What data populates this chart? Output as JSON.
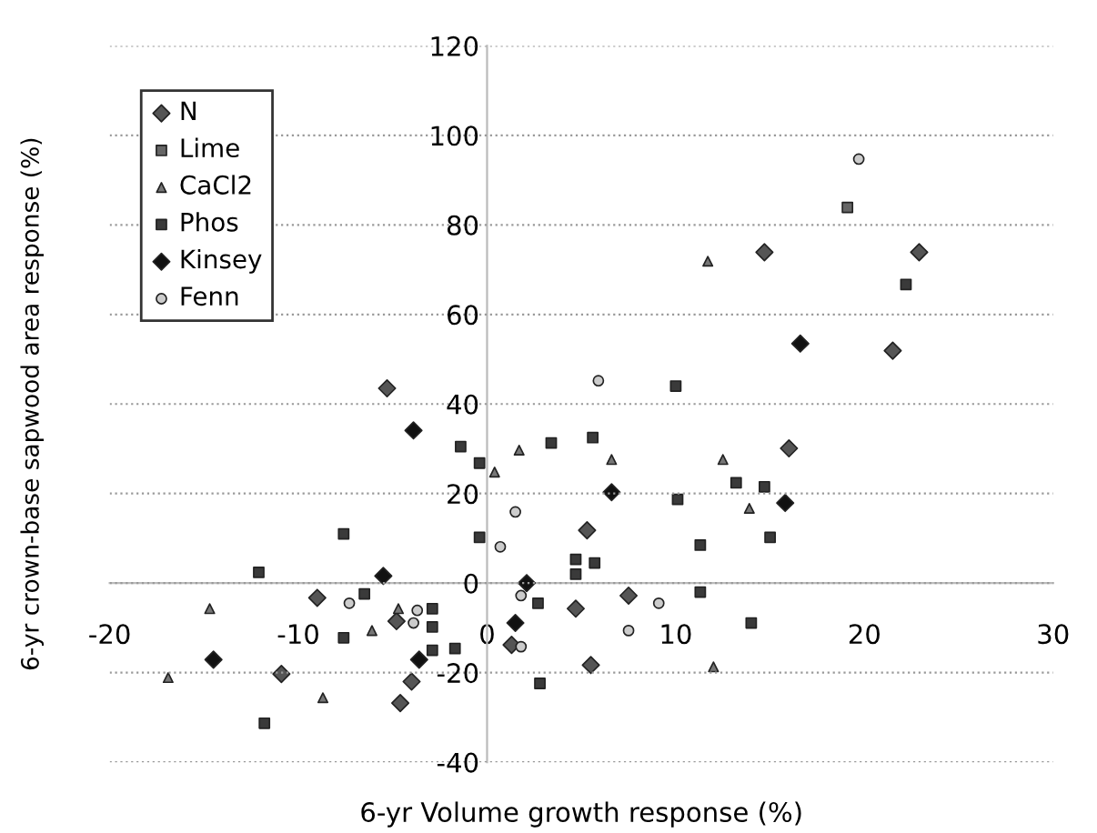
{
  "chart_data": {
    "type": "scatter",
    "xlabel": "6-yr Volume growth response (%)",
    "ylabel": "6-yr crown-base sapwood area response (%)",
    "xlim": [
      -20,
      30
    ],
    "xticks": [
      -20,
      -10,
      0,
      10,
      20,
      30
    ],
    "ylim": [
      -40,
      120
    ],
    "yticks": [
      -40,
      -20,
      0,
      20,
      40,
      60,
      80,
      100,
      120
    ],
    "grid": "y",
    "legend": "top left",
    "series": [
      {
        "name": "N",
        "color": "#555555",
        "marker": "diamond",
        "x": [
          14.7,
          22.9,
          21.5,
          -5.3,
          5.3,
          4.7,
          7.5,
          16.0,
          -9.0,
          -4.8,
          1.3,
          -4.0,
          -10.9,
          -4.6,
          5.5
        ],
        "values": [
          73.9,
          73.9,
          51.9,
          43.5,
          11.8,
          -5.7,
          -2.8,
          30.1,
          -3.3,
          -8.5,
          -13.8,
          -22.0,
          -20.3,
          -26.8,
          -18.3
        ]
      },
      {
        "name": "Lime",
        "color": "#666666",
        "marker": "square",
        "x": [
          19.1
        ],
        "values": [
          83.9
        ]
      },
      {
        "name": "CaCl2",
        "color": "#777777",
        "marker": "triangle",
        "x": [
          11.7,
          0.4,
          1.7,
          6.6,
          12.5,
          13.9,
          -14.7,
          -4.7,
          -6.1,
          -16.9,
          -8.7,
          12.0
        ],
        "values": [
          71.9,
          24.8,
          29.7,
          27.6,
          27.6,
          16.7,
          -5.7,
          -5.7,
          -10.6,
          -21.1,
          -25.6,
          -18.7
        ]
      },
      {
        "name": "Phos",
        "color": "#3a3a3a",
        "marker": "square",
        "x": [
          22.2,
          10.0,
          -1.4,
          -0.4,
          3.4,
          5.6,
          -7.6,
          -0.4,
          4.7,
          4.7,
          5.7,
          -12.1,
          -6.5,
          2.7,
          11.3,
          10.1,
          11.3,
          13.2,
          14.7,
          15.0,
          14.0,
          -2.9,
          -2.9,
          -7.6,
          -2.9,
          -1.7,
          -11.8,
          2.8
        ],
        "values": [
          66.7,
          44.0,
          30.5,
          26.8,
          31.3,
          32.5,
          11.0,
          10.2,
          5.3,
          2.0,
          4.5,
          2.4,
          -2.4,
          -4.5,
          -2.0,
          18.7,
          8.5,
          22.4,
          21.5,
          10.2,
          -8.9,
          -5.7,
          -9.8,
          -12.2,
          -15.0,
          -14.6,
          -31.3,
          -22.4
        ]
      },
      {
        "name": "Kinsey",
        "color": "#111111",
        "marker": "diamond",
        "x": [
          16.6,
          -3.9,
          6.6,
          -5.5,
          2.1,
          15.8,
          1.5,
          -3.6,
          -14.5
        ],
        "values": [
          53.5,
          34.1,
          20.3,
          1.6,
          0.0,
          17.9,
          -8.9,
          -17.1,
          -17.1
        ]
      },
      {
        "name": "Fenn",
        "color": "#cccccc",
        "marker": "circle",
        "x": [
          19.7,
          5.9,
          1.5,
          0.7,
          1.8,
          9.1,
          7.5,
          -7.3,
          -3.7,
          -3.9,
          1.8
        ],
        "values": [
          94.7,
          45.2,
          15.9,
          8.1,
          -2.8,
          -4.5,
          -10.6,
          -4.5,
          -6.1,
          -8.9,
          -14.2
        ]
      }
    ]
  }
}
